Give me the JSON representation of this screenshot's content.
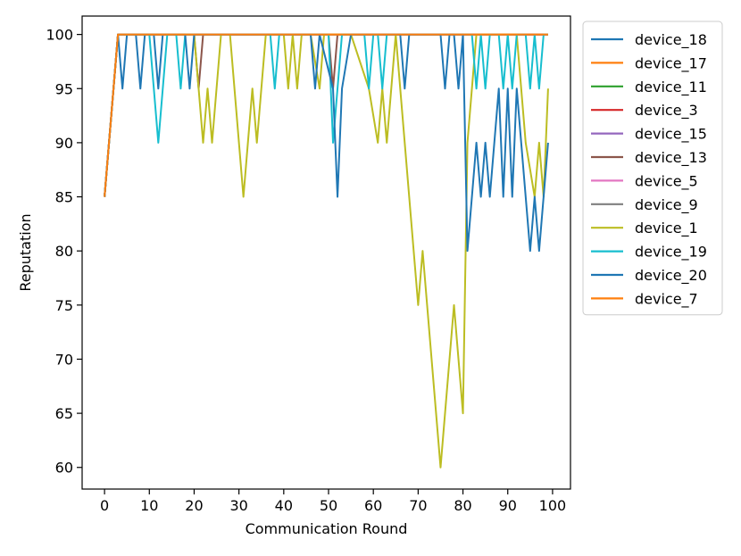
{
  "chart_data": {
    "type": "line",
    "title": "",
    "xlabel": "Communication Round",
    "ylabel": "Reputation",
    "xlim": [
      -5,
      104
    ],
    "ylim": [
      58,
      101.7
    ],
    "xticks": [
      0,
      10,
      20,
      30,
      40,
      50,
      60,
      70,
      80,
      90,
      100
    ],
    "yticks": [
      60,
      65,
      70,
      75,
      80,
      85,
      90,
      95,
      100
    ],
    "grid": false,
    "legend_position": "outside-right-top",
    "series": [
      {
        "name": "device_18",
        "color": "#1f77b4",
        "points": [
          [
            0,
            85
          ],
          [
            3,
            100
          ],
          [
            4,
            95
          ],
          [
            5,
            100
          ],
          [
            7,
            100
          ],
          [
            8,
            95
          ],
          [
            9,
            100
          ],
          [
            11,
            100
          ],
          [
            12,
            95
          ],
          [
            13,
            100
          ],
          [
            99,
            100
          ]
        ]
      },
      {
        "name": "device_17",
        "color": "#ff7f0e",
        "points": [
          [
            0,
            85
          ],
          [
            3,
            100
          ],
          [
            99,
            100
          ]
        ]
      },
      {
        "name": "device_11",
        "color": "#2ca02c",
        "points": [
          [
            0,
            85
          ],
          [
            3,
            100
          ],
          [
            99,
            100
          ]
        ]
      },
      {
        "name": "device_3",
        "color": "#d62728",
        "points": [
          [
            0,
            85
          ],
          [
            3,
            100
          ],
          [
            99,
            100
          ]
        ]
      },
      {
        "name": "device_15",
        "color": "#9467bd",
        "points": [
          [
            0,
            85
          ],
          [
            3,
            100
          ],
          [
            99,
            100
          ]
        ]
      },
      {
        "name": "device_13",
        "color": "#8c564b",
        "points": [
          [
            0,
            85
          ],
          [
            3,
            100
          ],
          [
            20,
            100
          ],
          [
            21,
            95
          ],
          [
            22,
            100
          ],
          [
            50,
            100
          ],
          [
            51,
            95
          ],
          [
            52,
            100
          ],
          [
            99,
            100
          ]
        ]
      },
      {
        "name": "device_5",
        "color": "#e377c2",
        "points": [
          [
            0,
            85
          ],
          [
            3,
            100
          ],
          [
            99,
            100
          ]
        ]
      },
      {
        "name": "device_9",
        "color": "#7f7f7f",
        "points": [
          [
            0,
            85
          ],
          [
            3,
            100
          ],
          [
            99,
            100
          ]
        ]
      },
      {
        "name": "device_1",
        "color": "#bcbd22",
        "points": [
          [
            0,
            85
          ],
          [
            3,
            100
          ],
          [
            20,
            100
          ],
          [
            22,
            90
          ],
          [
            23,
            95
          ],
          [
            24,
            90
          ],
          [
            26,
            100
          ],
          [
            28,
            100
          ],
          [
            31,
            85
          ],
          [
            33,
            95
          ],
          [
            34,
            90
          ],
          [
            36,
            100
          ],
          [
            40,
            100
          ],
          [
            41,
            95
          ],
          [
            42,
            100
          ],
          [
            43,
            95
          ],
          [
            44,
            100
          ],
          [
            46,
            100
          ],
          [
            48,
            95
          ],
          [
            49,
            100
          ],
          [
            55,
            100
          ],
          [
            59,
            95
          ],
          [
            61,
            90
          ],
          [
            62,
            95
          ],
          [
            63,
            90
          ],
          [
            65,
            100
          ],
          [
            70,
            75
          ],
          [
            71,
            80
          ],
          [
            75,
            60
          ],
          [
            78,
            75
          ],
          [
            80,
            65
          ],
          [
            81,
            90
          ],
          [
            83,
            100
          ],
          [
            92,
            100
          ],
          [
            94,
            90
          ],
          [
            96,
            85
          ],
          [
            97,
            90
          ],
          [
            98,
            85
          ],
          [
            99,
            95
          ]
        ]
      },
      {
        "name": "device_19",
        "color": "#17becf",
        "points": [
          [
            0,
            85
          ],
          [
            3,
            100
          ],
          [
            10,
            100
          ],
          [
            12,
            90
          ],
          [
            14,
            100
          ],
          [
            16,
            100
          ],
          [
            17,
            95
          ],
          [
            18,
            100
          ],
          [
            37,
            100
          ],
          [
            38,
            95
          ],
          [
            39,
            100
          ],
          [
            50,
            100
          ],
          [
            51,
            90
          ],
          [
            53,
            100
          ],
          [
            58,
            100
          ],
          [
            59,
            95
          ],
          [
            60,
            100
          ],
          [
            61,
            100
          ],
          [
            62,
            95
          ],
          [
            63,
            100
          ],
          [
            82,
            100
          ],
          [
            83,
            95
          ],
          [
            84,
            100
          ],
          [
            85,
            95
          ],
          [
            86,
            100
          ],
          [
            88,
            100
          ],
          [
            89,
            95
          ],
          [
            90,
            100
          ],
          [
            91,
            95
          ],
          [
            92,
            100
          ],
          [
            94,
            100
          ],
          [
            95,
            95
          ],
          [
            96,
            100
          ],
          [
            97,
            95
          ],
          [
            98,
            100
          ],
          [
            99,
            100
          ]
        ]
      },
      {
        "name": "device_20",
        "color": "#1f77b4",
        "points": [
          [
            0,
            85
          ],
          [
            3,
            100
          ],
          [
            18,
            100
          ],
          [
            19,
            95
          ],
          [
            20,
            100
          ],
          [
            46,
            100
          ],
          [
            47,
            95
          ],
          [
            48,
            100
          ],
          [
            51,
            95
          ],
          [
            52,
            85
          ],
          [
            53,
            95
          ],
          [
            55,
            100
          ],
          [
            66,
            100
          ],
          [
            67,
            95
          ],
          [
            68,
            100
          ],
          [
            75,
            100
          ],
          [
            76,
            95
          ],
          [
            77,
            100
          ],
          [
            78,
            100
          ],
          [
            79,
            95
          ],
          [
            80,
            100
          ],
          [
            81,
            80
          ],
          [
            83,
            90
          ],
          [
            84,
            85
          ],
          [
            85,
            90
          ],
          [
            86,
            85
          ],
          [
            88,
            95
          ],
          [
            89,
            85
          ],
          [
            90,
            95
          ],
          [
            91,
            85
          ],
          [
            92,
            95
          ],
          [
            95,
            80
          ],
          [
            96,
            85
          ],
          [
            97,
            80
          ],
          [
            99,
            90
          ]
        ]
      },
      {
        "name": "device_7",
        "color": "#ff7f0e",
        "points": [
          [
            0,
            85
          ],
          [
            3,
            100
          ],
          [
            99,
            100
          ]
        ]
      }
    ]
  }
}
